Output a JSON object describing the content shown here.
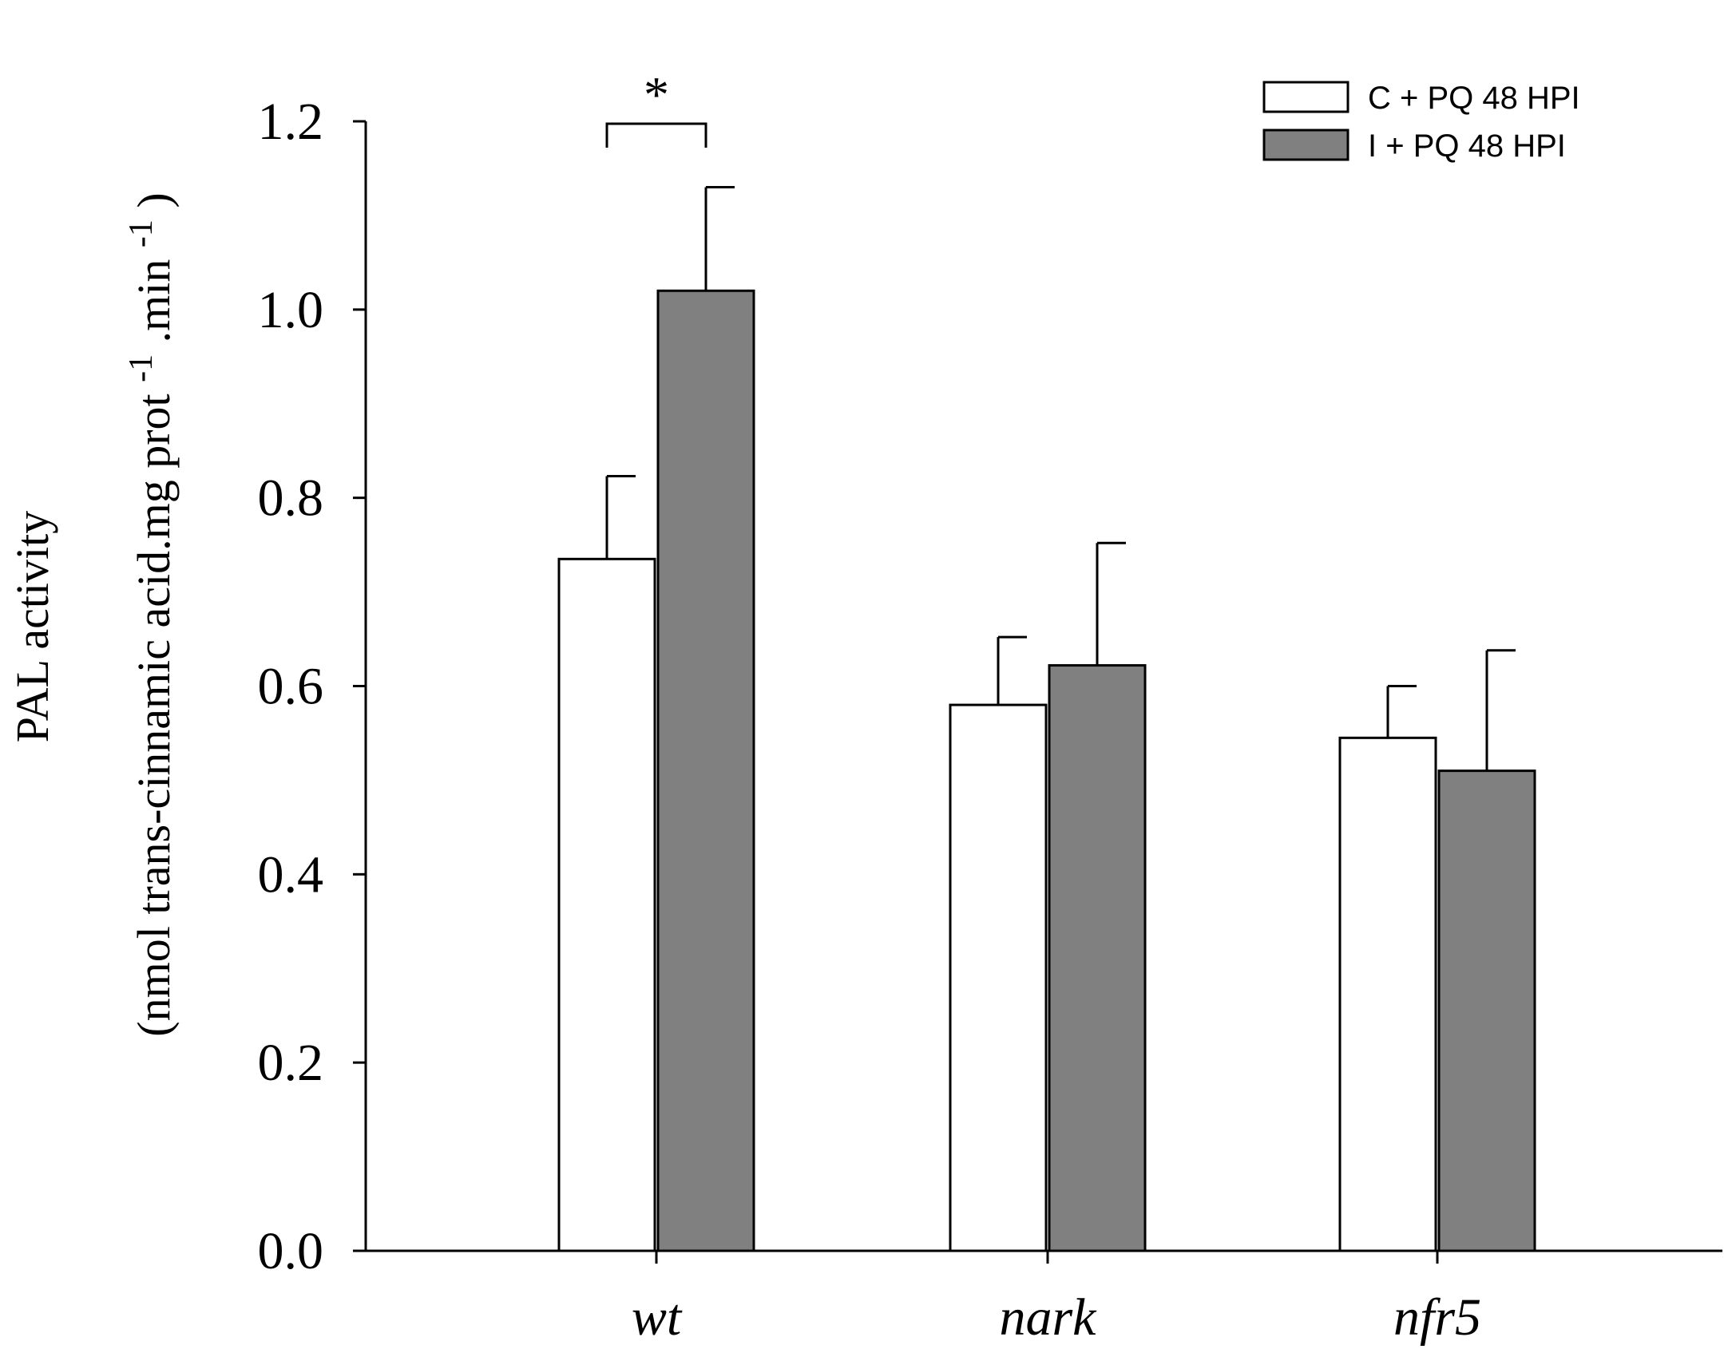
{
  "chart_data": {
    "type": "bar",
    "categories": [
      "wt",
      "nark",
      "nfr5"
    ],
    "series": [
      {
        "name": "C + PQ 48 HPI",
        "color": "#ffffff",
        "values": [
          0.735,
          0.58,
          0.545
        ],
        "errors": [
          0.088,
          0.072,
          0.055
        ]
      },
      {
        "name": "I + PQ 48 HPI",
        "color": "#808080",
        "values": [
          1.02,
          0.622,
          0.51
        ],
        "errors": [
          0.11,
          0.13,
          0.128
        ]
      }
    ],
    "ylabel_line1": "PAL activity",
    "ylabel_line2": {
      "a": "(nmol trans-cinnamic acid.mg prot",
      "sup1": "-1",
      "b": ".min",
      "sup2": "-1",
      "c": ")"
    },
    "xlabel": "",
    "ylim": [
      0,
      1.2
    ],
    "yticks": [
      "0.0",
      "0.2",
      "0.4",
      "0.6",
      "0.8",
      "1.0",
      "1.2"
    ],
    "annotation": {
      "text": "*",
      "category": "wt"
    },
    "legend_position": "top-right"
  }
}
